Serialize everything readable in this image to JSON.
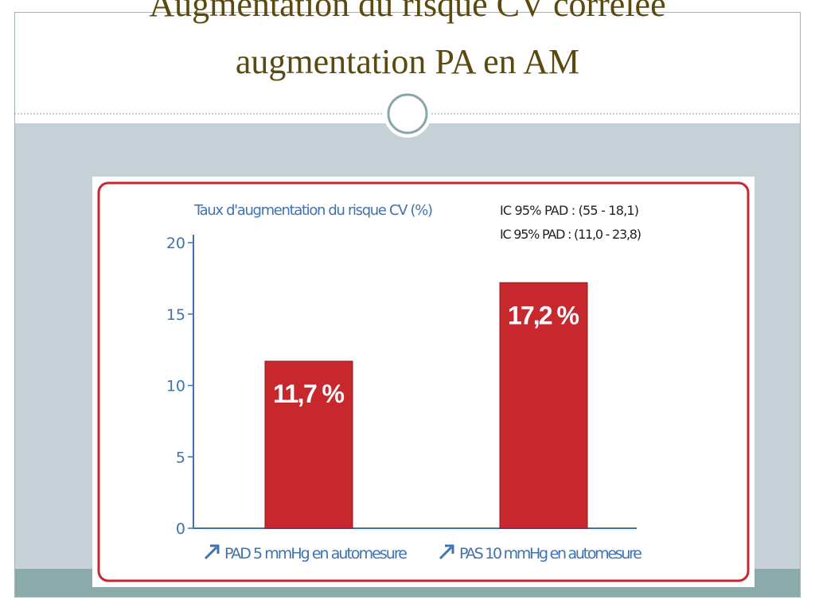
{
  "slide": {
    "title": [
      "Augmentation du risque CV corrélée",
      "augmentation PA en AM"
    ]
  },
  "chart_data": {
    "type": "bar",
    "title": "Taux d'augmentation du risque CV (%)",
    "annotations": [
      "IC 95% PAD : (55 - 18,1)",
      "IC 95% PAD : (11,0 - 23,8)"
    ],
    "categories": [
      "PAD 5 mmHg en automesure",
      "PAS 10 mmHg en automesure"
    ],
    "values": [
      11.7,
      17.2
    ],
    "value_labels": [
      "11,7 %",
      "17,2 %"
    ],
    "color": "#c7282d",
    "ylim": [
      0,
      20
    ],
    "yticks": [
      0,
      5,
      10,
      15,
      20
    ]
  }
}
